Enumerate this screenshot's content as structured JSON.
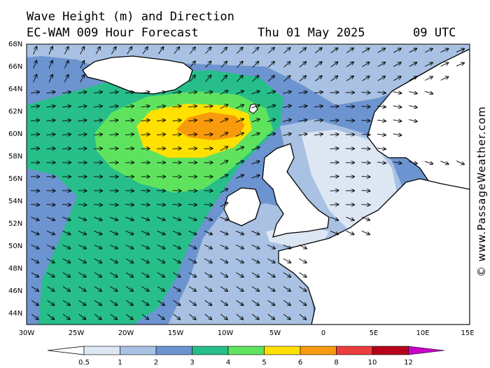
{
  "header": {
    "title": "Wave Height (m) and Direction",
    "model": "EC-WAM 009 Hour Forecast",
    "date": "Thu 01 May 2025",
    "time": "09 UTC"
  },
  "credit": "© www.PassageWeather.com",
  "axes": {
    "lat_labels": [
      "68N",
      "66N",
      "64N",
      "62N",
      "60N",
      "58N",
      "56N",
      "54N",
      "52N",
      "50N",
      "48N",
      "46N",
      "44N"
    ],
    "lon_labels": [
      "30W",
      "25W",
      "20W",
      "15W",
      "10W",
      "5W",
      "0",
      "5E",
      "10E",
      "15E"
    ]
  },
  "legend": {
    "tick_labels": [
      "0.5",
      "1",
      "2",
      "3",
      "4",
      "5",
      "6",
      "8",
      "10",
      "12"
    ],
    "colors": [
      "#dde6f3",
      "#a9c1e2",
      "#6c94d0",
      "#27be8a",
      "#5fe35f",
      "#ffe000",
      "#f99a0c",
      "#ee3d3d",
      "#b8001a",
      "#c800c8"
    ],
    "low_color": "#ffffff"
  },
  "map": {
    "ocean_base_color": "#6c94d0",
    "land_color": "#ffffff",
    "peak_wave_region": "orange (6-8 m) west of Faroe Islands"
  }
}
